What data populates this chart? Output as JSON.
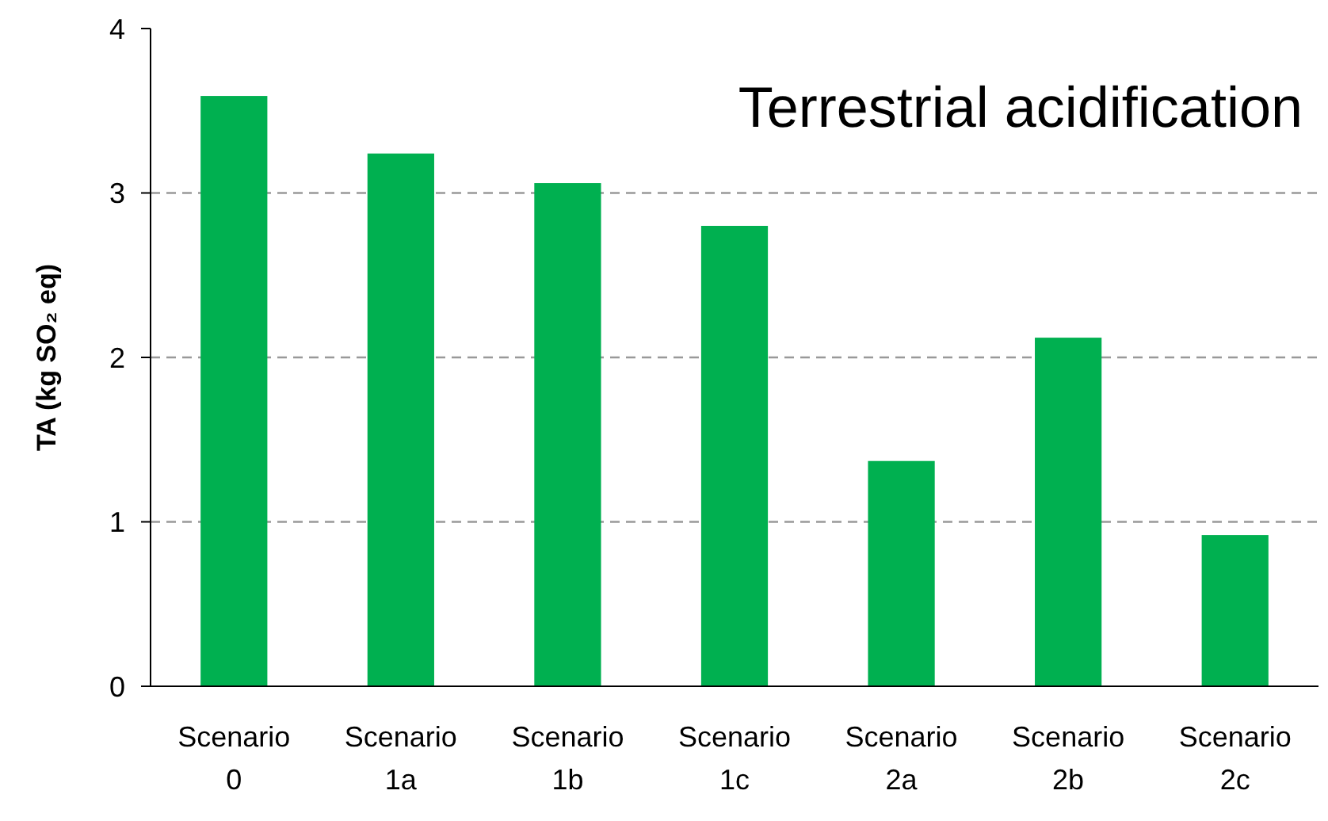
{
  "chart_data": {
    "type": "bar",
    "title": "Terrestrial acidification",
    "ylabel": "TA (kg SO₂ eq)",
    "categories": [
      "Scenario 0",
      "Scenario 1a",
      "Scenario 1b",
      "Scenario 1c",
      "Scenario 2a",
      "Scenario 2b",
      "Scenario 2c"
    ],
    "values": [
      3.59,
      3.24,
      3.06,
      2.8,
      1.37,
      2.12,
      0.92
    ],
    "color": "#00b050",
    "ylim": [
      0,
      4
    ],
    "yticks": [
      0,
      1,
      2,
      3,
      4
    ],
    "grid": "y"
  }
}
